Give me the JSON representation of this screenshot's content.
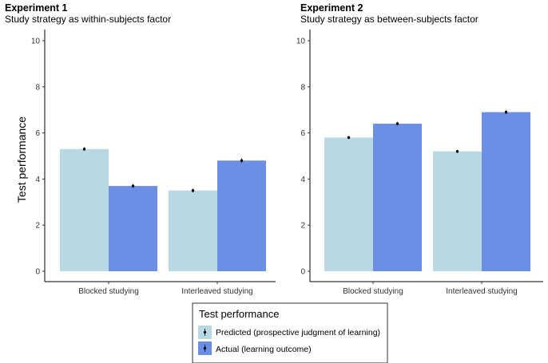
{
  "figure": {
    "ylabel": "Test performance",
    "legend": {
      "title": "Test performance",
      "entries": [
        {
          "label": "Predicted (prospective judgment of learning)",
          "color": "#b8d8e2"
        },
        {
          "label": "Actual (learning outcome)",
          "color": "#6b8fe2"
        }
      ]
    }
  },
  "chart_data": [
    {
      "type": "bar",
      "title": "Experiment 1",
      "subtitle": "Study strategy as within-subjects factor",
      "categories": [
        "Blocked studying",
        "Interleaved studying"
      ],
      "series": [
        {
          "name": "Predicted (prospective judgment of learning)",
          "values": [
            5.3,
            3.5
          ],
          "errors": [
            0.08,
            0.08
          ],
          "color": "#b8d8e2"
        },
        {
          "name": "Actual (learning outcome)",
          "values": [
            3.7,
            4.8
          ],
          "errors": [
            0.08,
            0.1
          ],
          "color": "#6b8fe2"
        }
      ],
      "ylim": [
        0,
        10
      ],
      "yticks": [
        0,
        2,
        4,
        6,
        8,
        10
      ],
      "ylabel": "Test performance",
      "grid": false
    },
    {
      "type": "bar",
      "title": "Experiment 2",
      "subtitle": "Study strategy as between-subjects factor",
      "categories": [
        "Blocked studying",
        "Interleaved studying"
      ],
      "series": [
        {
          "name": "Predicted (prospective judgment of learning)",
          "values": [
            5.8,
            5.2
          ],
          "errors": [
            0.06,
            0.07
          ],
          "color": "#b8d8e2"
        },
        {
          "name": "Actual (learning outcome)",
          "values": [
            6.4,
            6.9
          ],
          "errors": [
            0.08,
            0.08
          ],
          "color": "#6b8fe2"
        }
      ],
      "ylim": [
        0,
        10
      ],
      "yticks": [
        0,
        2,
        4,
        6,
        8,
        10
      ],
      "grid": false
    }
  ]
}
